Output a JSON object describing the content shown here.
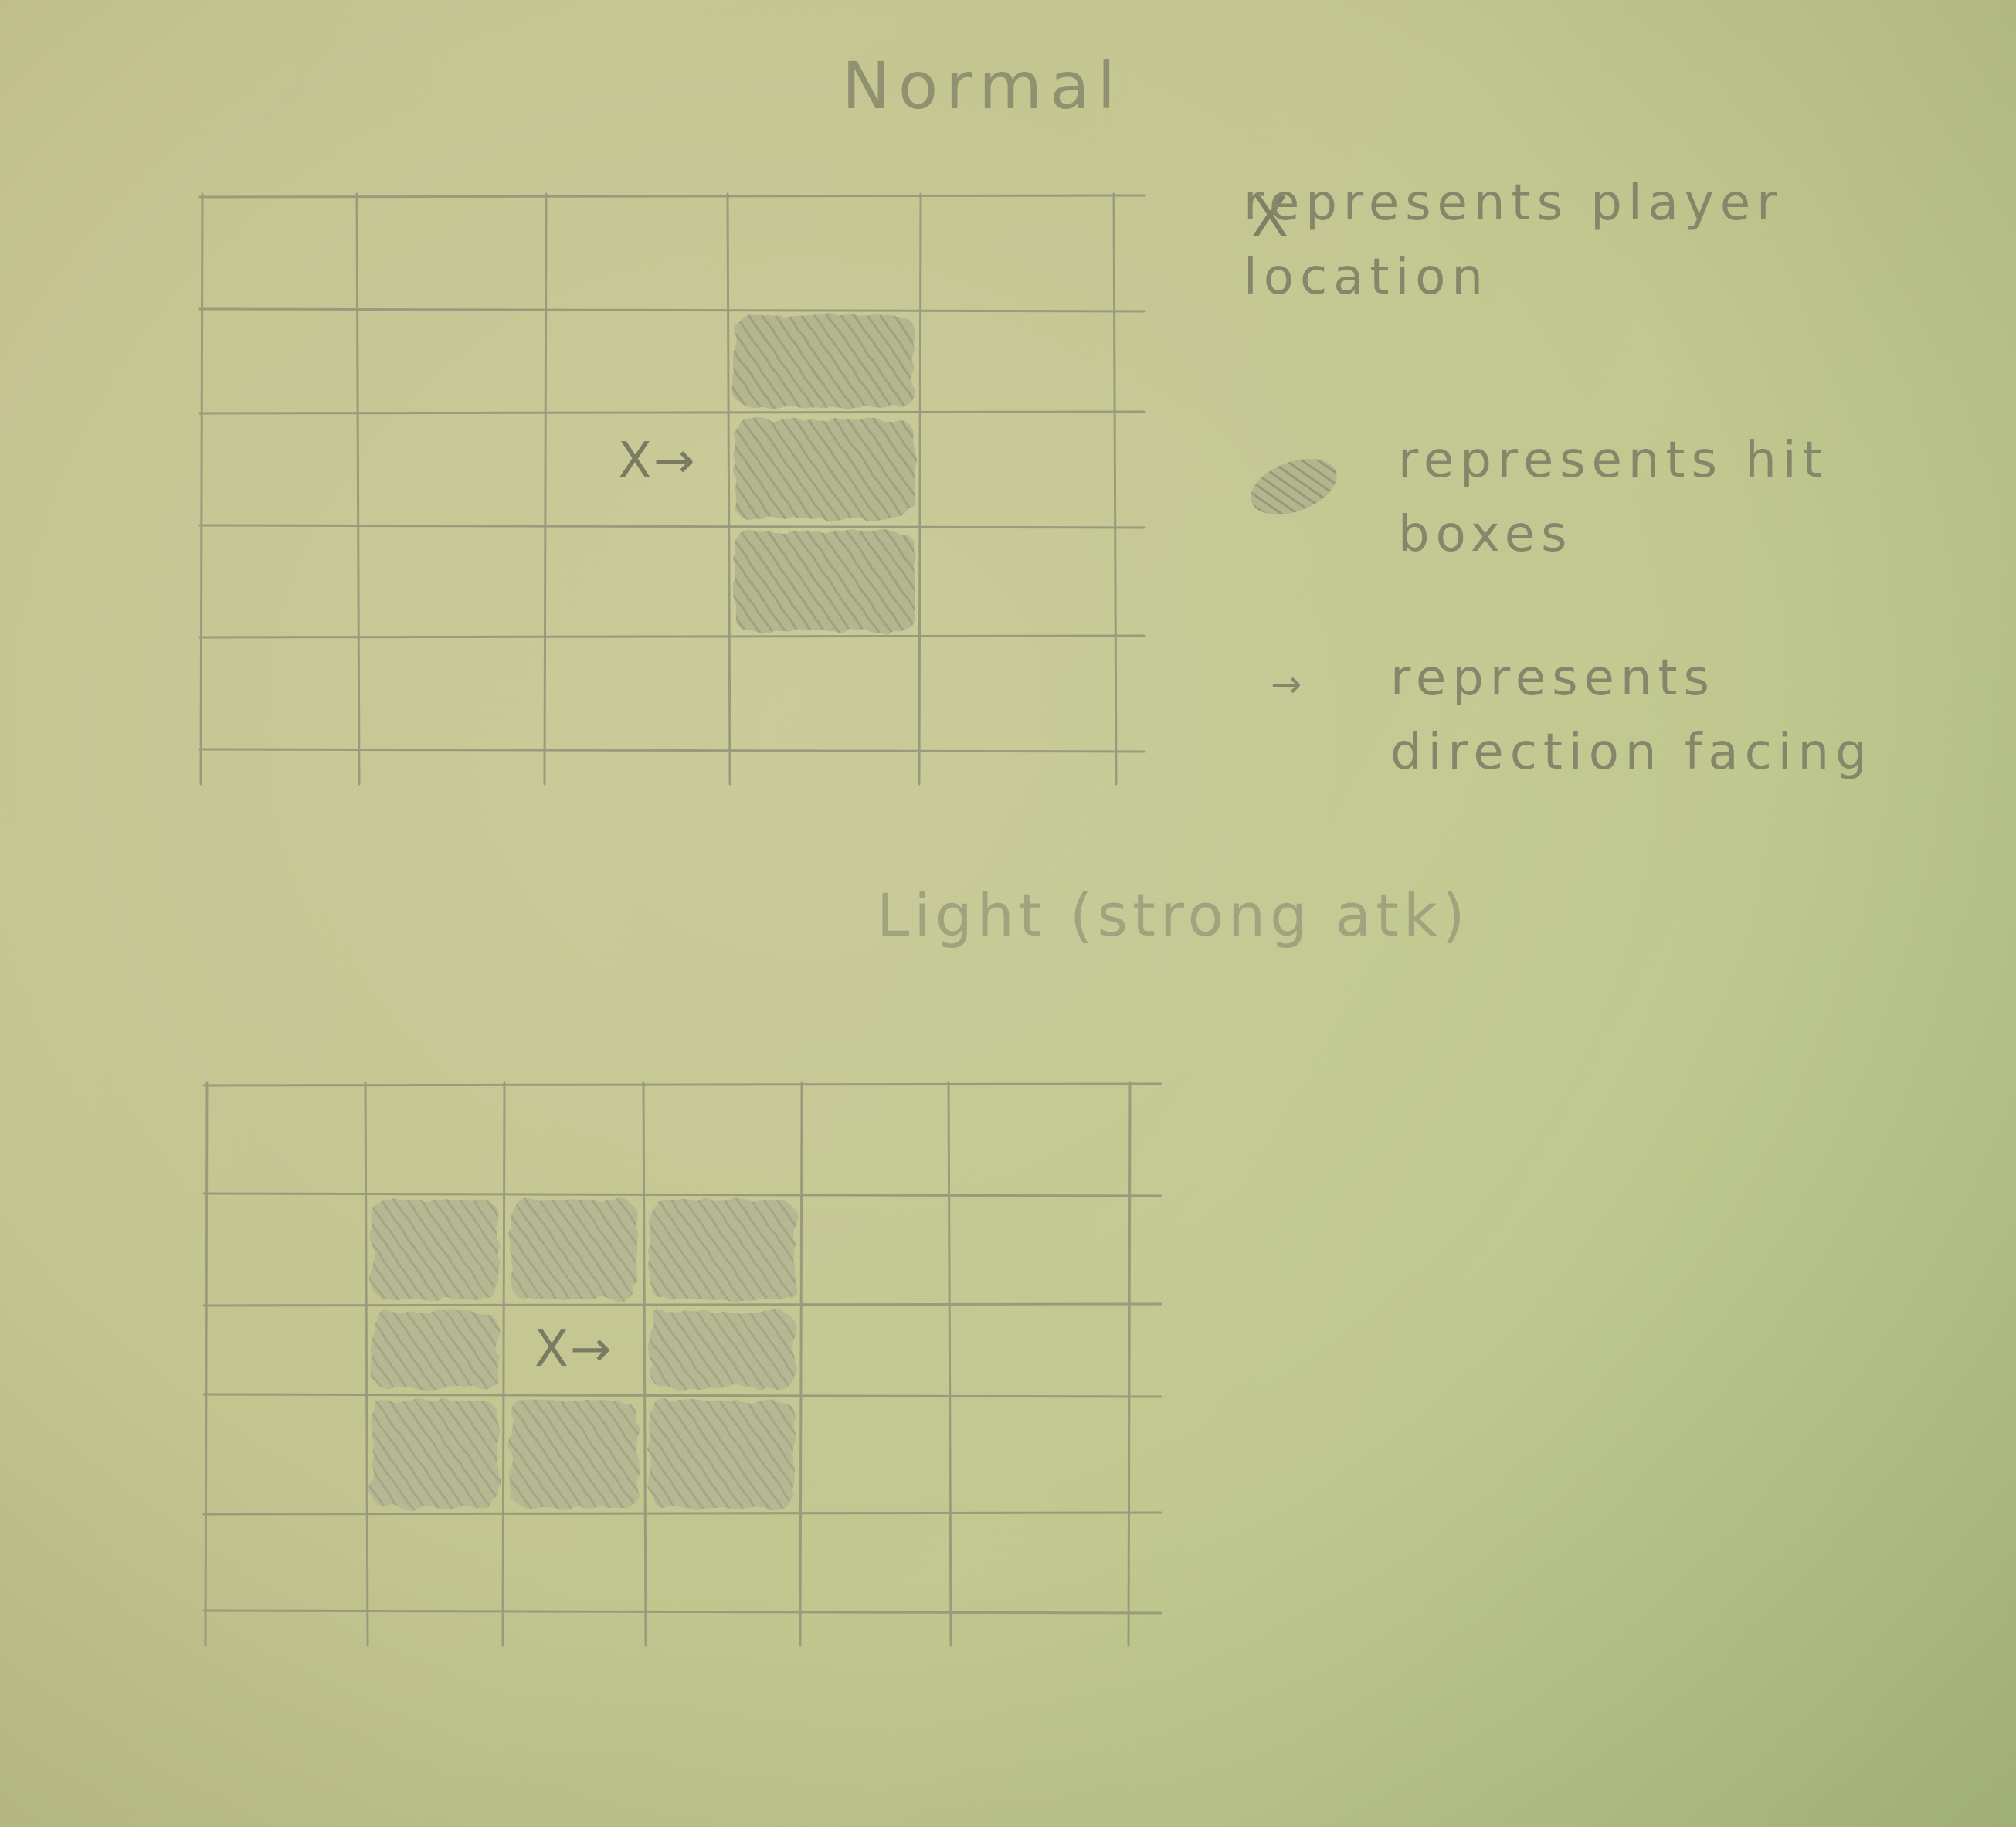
{
  "titles": {
    "normal": "Normal",
    "light": "Light (strong atk)"
  },
  "legend": {
    "player_symbol": "X",
    "player_text": "represents player location",
    "hitbox_text": "represents hit boxes",
    "direction_symbol": "→",
    "direction_text": "represents direction facing"
  },
  "diagrams": [
    {
      "name": "normal",
      "cols": 5,
      "rows": 5,
      "player": {
        "col": 2,
        "row": 2,
        "label": "X→"
      },
      "hit_cells": [
        [
          3,
          1
        ],
        [
          3,
          2
        ],
        [
          3,
          3
        ]
      ]
    },
    {
      "name": "light",
      "cols": 6,
      "rows": 5,
      "player": {
        "col": 2,
        "row": 2,
        "label": "X→"
      },
      "hit_cells": [
        [
          1,
          1
        ],
        [
          2,
          1
        ],
        [
          3,
          1
        ],
        [
          1,
          2
        ],
        [
          3,
          2
        ],
        [
          1,
          3
        ],
        [
          2,
          3
        ],
        [
          3,
          3
        ]
      ]
    }
  ],
  "colors": {
    "paper": "#c4c690",
    "pencil_line": "#9a9b7c",
    "pencil_text": "#85876a",
    "shading": "#a9ab88"
  }
}
